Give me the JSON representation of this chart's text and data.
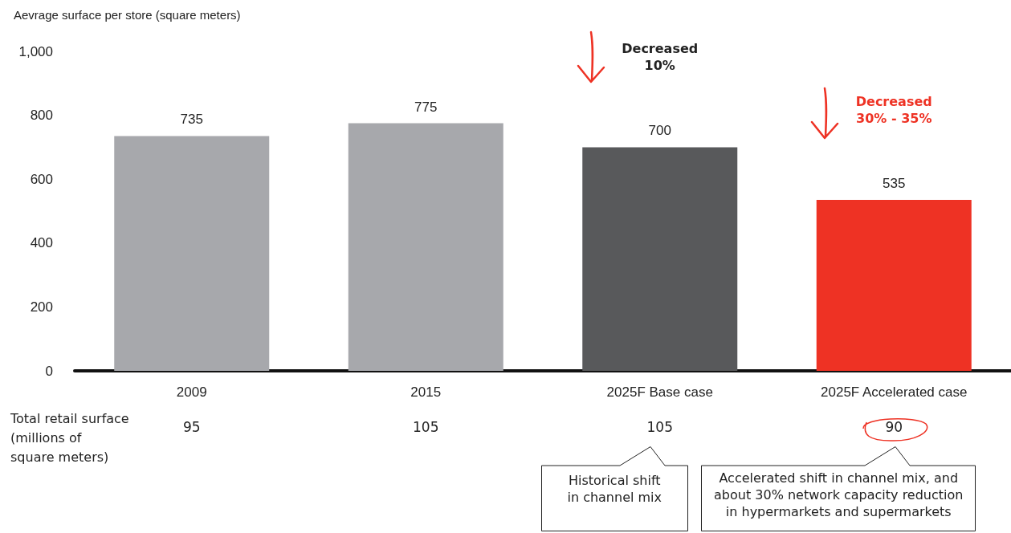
{
  "chart_data": {
    "type": "bar",
    "ylabel": "Aevrage surface per store (square meters)",
    "categories": [
      "2009",
      "2015",
      "2025F Base case",
      "2025F Accelerated case"
    ],
    "values": [
      735,
      775,
      700,
      535
    ],
    "colors": [
      "#a7a8ac",
      "#a7a8ac",
      "#58595b",
      "#ee3224"
    ],
    "ylim": [
      0,
      1000
    ],
    "yticks": [
      0,
      200,
      400,
      600,
      800,
      {
        "value": 1000,
        "label": "1,000"
      }
    ],
    "data_labels": true,
    "annotations": [
      "Total retail surface\n(millions of\nsquare meters)",
      "95",
      "105",
      "105",
      "90",
      "Decreased\n10%",
      "Decreased\n30% - 35%",
      "Historical shift\nin channel mix",
      "Accelerated shift in channel mix, and\nabout 30% network capacity reduction\nin hypermarkets and supermarkets"
    ]
  }
}
